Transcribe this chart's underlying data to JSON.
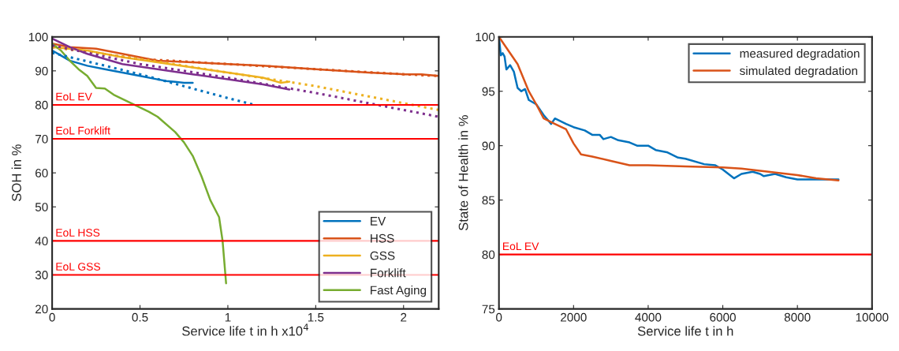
{
  "chart_data": [
    {
      "type": "line",
      "xlabel": "Service life t in h x10$^{4}$",
      "ylabel": "SOH in %",
      "xlim": [
        0,
        2.2
      ],
      "xticks": [
        0,
        0.5,
        1,
        1.5,
        2
      ],
      "ylim": [
        20,
        100
      ],
      "yticks": [
        20,
        30,
        40,
        50,
        60,
        70,
        80,
        90,
        100
      ],
      "grid": false,
      "legend": "bottom right",
      "series": [
        {
          "name": "EV",
          "color": "#0072bd",
          "x": [
            0,
            0.05,
            0.1,
            0.2,
            0.3,
            0.4,
            0.5,
            0.6,
            0.65,
            0.7,
            0.75,
            0.8
          ],
          "values": [
            96,
            94.5,
            93,
            91.5,
            90.5,
            89.5,
            88.5,
            87.5,
            87,
            86.8,
            86.5,
            86.5
          ]
        },
        {
          "name": "HSS",
          "color": "#d95319",
          "x": [
            0,
            0.1,
            0.25,
            0.4,
            0.6,
            0.8,
            1.0,
            1.2,
            1.5,
            1.8,
            2.0,
            2.1,
            2.2
          ],
          "values": [
            98,
            97,
            96.5,
            95,
            93,
            92.5,
            92,
            91.5,
            90.5,
            89.5,
            89,
            89,
            88.5
          ]
        },
        {
          "name": "GSS",
          "color": "#edb120",
          "x": [
            0,
            0.2,
            0.4,
            0.6,
            0.8,
            1.0,
            1.2,
            1.3,
            1.35
          ],
          "values": [
            97,
            96,
            94,
            92.5,
            91,
            89.5,
            88,
            86.5,
            86.8
          ]
        },
        {
          "name": "Forklift",
          "color": "#7e2f8e",
          "x": [
            0,
            0.1,
            0.2,
            0.4,
            0.6,
            0.8,
            1.0,
            1.2,
            1.35
          ],
          "values": [
            99.5,
            97,
            95,
            92,
            90.5,
            89,
            87.5,
            86,
            84.5
          ]
        },
        {
          "name": "Fast Aging",
          "color": "#77ac30",
          "x": [
            0,
            0.05,
            0.1,
            0.15,
            0.2,
            0.25,
            0.3,
            0.35,
            0.45,
            0.55,
            0.6,
            0.7,
            0.75,
            0.8,
            0.85,
            0.9,
            0.95,
            0.97,
            0.99
          ],
          "values": [
            98,
            96,
            93,
            90.5,
            88.5,
            85,
            84.8,
            83,
            80.5,
            78,
            76.5,
            72,
            69,
            65,
            59,
            52,
            47,
            40,
            27.5
          ]
        },
        {
          "color": "#0072bd",
          "line_style": "dotted",
          "x": [
            0,
            0.5,
            1.0,
            1.15
          ],
          "values": [
            95.3,
            89,
            82,
            80
          ]
        },
        {
          "color": "#d95319",
          "line_style": "dotted",
          "x": [
            0,
            0.5,
            1.0,
            1.5,
            2.0,
            2.2
          ],
          "values": [
            97,
            93.5,
            92,
            90.5,
            89,
            88.5
          ]
        },
        {
          "color": "#edb120",
          "line_style": "dotted",
          "x": [
            0,
            0.5,
            1.0,
            1.5,
            2.0,
            2.2
          ],
          "values": [
            97,
            93.5,
            89.5,
            85.5,
            80.5,
            78.5
          ]
        },
        {
          "color": "#7e2f8e",
          "line_style": "dotted",
          "x": [
            0,
            0.5,
            1.0,
            1.5,
            2.0,
            2.2
          ],
          "values": [
            97.5,
            92,
            88,
            83.5,
            78.5,
            76.5
          ]
        }
      ],
      "ref_lines": [
        {
          "axis": "y",
          "value": 80,
          "label": "EoL EV",
          "color": "#ff0000"
        },
        {
          "axis": "y",
          "value": 70,
          "label": "EoL Forklift",
          "color": "#ff0000"
        },
        {
          "axis": "y",
          "value": 40,
          "label": "EoL HSS",
          "color": "#ff0000"
        },
        {
          "axis": "y",
          "value": 30,
          "label": "EoL GSS",
          "color": "#ff0000"
        }
      ]
    },
    {
      "type": "line",
      "xlabel": "Service life t in h",
      "ylabel": "State of Health in %",
      "xlim": [
        0,
        10000
      ],
      "xticks": [
        0,
        2000,
        4000,
        6000,
        8000,
        10000
      ],
      "ylim": [
        75,
        100
      ],
      "yticks": [
        75,
        80,
        85,
        90,
        95,
        100
      ],
      "grid": false,
      "legend": "top right",
      "series": [
        {
          "name": "measured degradation",
          "color": "#0072bd",
          "x": [
            0,
            50,
            100,
            150,
            200,
            300,
            400,
            500,
            600,
            700,
            800,
            1000,
            1200,
            1400,
            1500,
            1800,
            2000,
            2300,
            2500,
            2700,
            2800,
            3000,
            3200,
            3500,
            3700,
            4000,
            4200,
            4500,
            4800,
            5000,
            5500,
            5800,
            6000,
            6300,
            6500,
            6800,
            7000,
            7100,
            7400,
            7700,
            8000,
            8500,
            9100
          ],
          "values": [
            100,
            98.3,
            98.5,
            98.2,
            97,
            97.4,
            96.8,
            95.3,
            95,
            95.2,
            94.2,
            93.8,
            92.8,
            92,
            92.5,
            92,
            91.7,
            91.4,
            91,
            91,
            90.6,
            90.8,
            90.5,
            90.3,
            90,
            90,
            89.6,
            89.4,
            88.9,
            88.8,
            88.3,
            88.2,
            87.8,
            87,
            87.4,
            87.6,
            87.4,
            87.2,
            87.4,
            87.1,
            86.9,
            86.9,
            86.9
          ]
        },
        {
          "name": "simulated degradation",
          "color": "#d95319",
          "x": [
            0,
            500,
            800,
            1000,
            1200,
            1500,
            1800,
            2000,
            2200,
            2500,
            3000,
            3500,
            4000,
            5000,
            6000,
            6500,
            7000,
            7500,
            8000,
            8500,
            9100
          ],
          "values": [
            100,
            97.5,
            95,
            93.8,
            92.5,
            92,
            91.5,
            90.2,
            89.2,
            89,
            88.6,
            88.2,
            88.2,
            88.1,
            88,
            87.9,
            87.7,
            87.5,
            87.3,
            87,
            86.8
          ]
        }
      ],
      "ref_lines": [
        {
          "axis": "y",
          "value": 80,
          "label": "EoL EV",
          "color": "#ff0000"
        }
      ]
    }
  ]
}
